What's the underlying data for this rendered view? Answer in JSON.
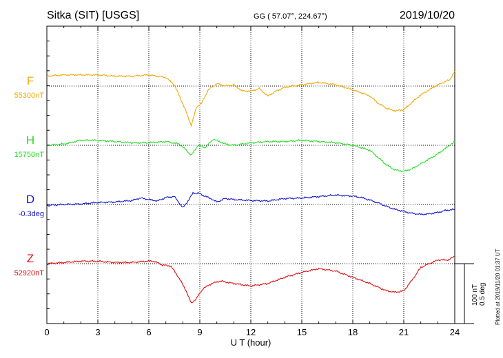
{
  "header": {
    "station": "Sitka (SIT)  [USGS]",
    "coords": "GG ( 57.07°, 224.67°)",
    "date": "2019/10/20"
  },
  "axis": {
    "xlabel": "U T (hour)",
    "xlim": [
      0,
      24
    ],
    "xticks": [
      "0",
      "3",
      "6",
      "9",
      "12",
      "15",
      "18",
      "21",
      "24"
    ]
  },
  "scale": {
    "line1": "100 nT",
    "line2": "0.5 deg"
  },
  "footer": {
    "plotted": "Plotted at 2019/11/20 01:37 UT"
  },
  "colors": {
    "F": "#f2a900",
    "H": "#22dd22",
    "D": "#1414cc",
    "Z": "#dd1111"
  },
  "chart_data": {
    "type": "line",
    "xlabel": "U T (hour)",
    "grid": true,
    "series": [
      {
        "name": "F",
        "baseline_label": "55300nT",
        "color": "#f2a900",
        "baseline": 55300,
        "unit": "nT",
        "x": [
          0,
          1,
          2,
          3,
          4,
          5,
          6,
          6.5,
          7,
          7.5,
          7.9,
          8.2,
          8.5,
          8.8,
          9.1,
          9.5,
          10,
          10.5,
          11,
          11.5,
          12,
          12.5,
          13,
          13.5,
          14,
          15,
          16,
          17,
          18,
          19,
          19.5,
          20,
          20.5,
          21,
          21.5,
          22,
          23,
          23.7,
          24
        ],
        "values": [
          55308,
          55309,
          55309,
          55309,
          55308,
          55308,
          55309,
          55308,
          55307,
          55301,
          55289,
          55279,
          55268,
          55283,
          55286,
          55297,
          55302,
          55300,
          55301,
          55296,
          55296,
          55298,
          55292,
          55296,
          55299,
          55301,
          55303,
          55301,
          55297,
          55292,
          55286,
          55282,
          55280,
          55281,
          55287,
          55293,
          55301,
          55305,
          55312
        ]
      },
      {
        "name": "H",
        "baseline_label": "15750nT",
        "color": "#22dd22",
        "baseline": 15750,
        "unit": "nT",
        "x": [
          0,
          1,
          2,
          3,
          4,
          5,
          6,
          7,
          7.8,
          8.2,
          8.5,
          8.9,
          9.3,
          9.8,
          10.5,
          11,
          12,
          13,
          14,
          15,
          16,
          17,
          18,
          19,
          19.5,
          20,
          20.5,
          21,
          21.5,
          22,
          23,
          24
        ],
        "values": [
          15750,
          15751,
          15754,
          15754,
          15753,
          15752,
          15752,
          15753,
          15751,
          15746,
          15742,
          15750,
          15748,
          15755,
          15751,
          15750,
          15752,
          15753,
          15753,
          15754,
          15753,
          15752,
          15750,
          15746,
          15740,
          15734,
          15730,
          15729,
          15731,
          15735,
          15743,
          15753
        ]
      },
      {
        "name": "D",
        "baseline_label": "-0.3deg",
        "color": "#1414cc",
        "baseline": -0.3,
        "unit": "deg",
        "x": [
          0,
          1,
          2,
          3,
          4,
          5,
          5.5,
          6,
          6.5,
          7,
          7.5,
          7.8,
          8,
          8.3,
          8.6,
          8.9,
          9.3,
          9.7,
          10,
          10.5,
          11,
          12,
          13,
          14,
          15,
          16,
          17,
          18,
          18.5,
          19,
          19.5,
          20,
          20.5,
          21,
          21.5,
          22,
          22.5,
          23,
          23.5,
          24
        ],
        "values": [
          -0.302,
          -0.3,
          -0.299,
          -0.296,
          -0.295,
          -0.292,
          -0.287,
          -0.29,
          -0.293,
          -0.286,
          -0.284,
          -0.297,
          -0.307,
          -0.293,
          -0.277,
          -0.277,
          -0.283,
          -0.289,
          -0.295,
          -0.288,
          -0.29,
          -0.292,
          -0.293,
          -0.288,
          -0.287,
          -0.284,
          -0.281,
          -0.283,
          -0.286,
          -0.291,
          -0.297,
          -0.304,
          -0.31,
          -0.314,
          -0.318,
          -0.32,
          -0.319,
          -0.316,
          -0.312,
          -0.31
        ]
      },
      {
        "name": "Z",
        "baseline_label": "52920nT",
        "color": "#dd1111",
        "baseline": 52920,
        "unit": "nT",
        "x": [
          0,
          1,
          2,
          3,
          4,
          5,
          5.8,
          6.3,
          6.8,
          7.3,
          7.8,
          8.2,
          8.5,
          8.8,
          9.2,
          9.7,
          10.2,
          11,
          12,
          13,
          14,
          15,
          16,
          17,
          18,
          19,
          20,
          20.5,
          21,
          21.5,
          22,
          23,
          23.6,
          24
        ],
        "values": [
          52920,
          52921,
          52922,
          52922,
          52921,
          52921,
          52922,
          52922,
          52919,
          52918,
          52908,
          52898,
          52888,
          52892,
          52900,
          52904,
          52906,
          52904,
          52902,
          52904,
          52909,
          52913,
          52916,
          52914,
          52909,
          52904,
          52898,
          52897,
          52898,
          52907,
          52917,
          52923,
          52923,
          52926
        ]
      }
    ]
  }
}
